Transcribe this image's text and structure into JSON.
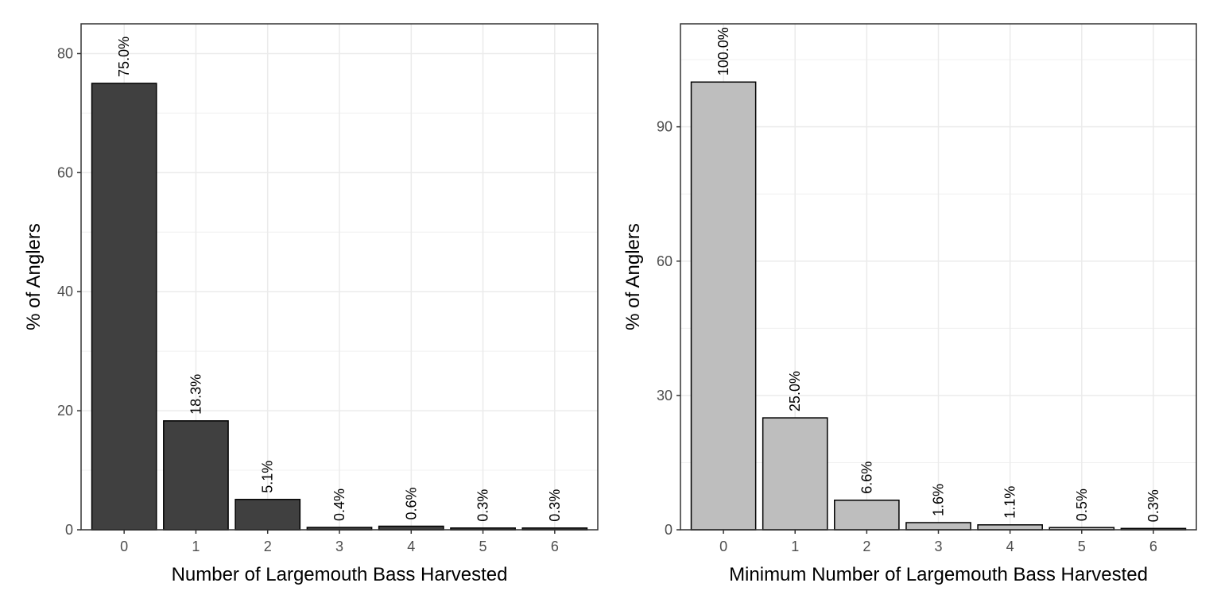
{
  "chart_data": [
    {
      "type": "bar",
      "categories": [
        "0",
        "1",
        "2",
        "3",
        "4",
        "5",
        "6"
      ],
      "values": [
        75.0,
        18.3,
        5.1,
        0.4,
        0.6,
        0.3,
        0.3
      ],
      "data_labels": [
        "75.0%",
        "18.3%",
        "5.1%",
        "0.4%",
        "0.6%",
        "0.3%",
        "0.3%"
      ],
      "title": "",
      "xlabel": "Number of Largemouth Bass Harvested",
      "ylabel": "% of Anglers",
      "ylim": [
        0,
        85
      ],
      "yticks": [
        0,
        20,
        40,
        60,
        80
      ],
      "bar_color": "#404040",
      "grid": true,
      "legend": "none"
    },
    {
      "type": "bar",
      "categories": [
        "0",
        "1",
        "2",
        "3",
        "4",
        "5",
        "6"
      ],
      "values": [
        100.0,
        25.0,
        6.6,
        1.6,
        1.1,
        0.5,
        0.3
      ],
      "data_labels": [
        "100.0%",
        "25.0%",
        "6.6%",
        "1.6%",
        "1.1%",
        "0.5%",
        "0.3%"
      ],
      "title": "",
      "xlabel": "Minimum Number of Largemouth Bass Harvested",
      "ylabel": "% of Anglers",
      "ylim": [
        0,
        113
      ],
      "yticks": [
        0,
        30,
        60,
        90
      ],
      "bar_color": "#bebebe",
      "grid": true,
      "legend": "none"
    }
  ]
}
